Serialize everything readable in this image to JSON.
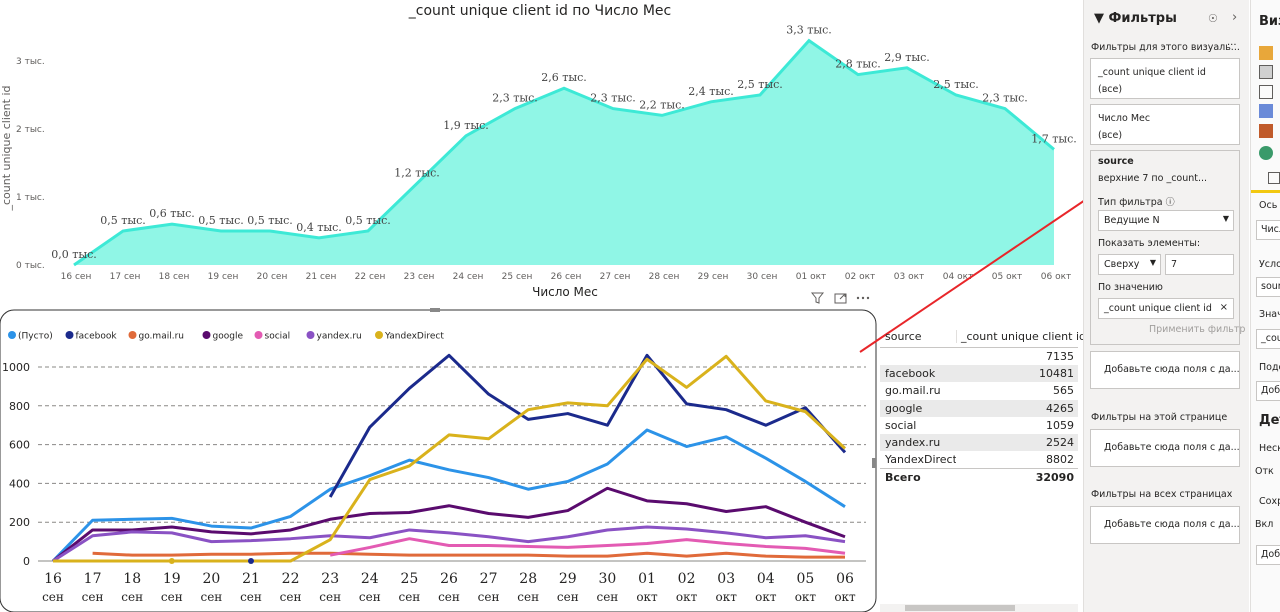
{
  "top_chart": {
    "title": "_count unique client id по Число Мес",
    "ylabel": "_count unique client id",
    "xlabel": "Число Мес",
    "y_ticks": [
      "0 тыс.",
      "1 тыс.",
      "2 тыс.",
      "3 тыс."
    ],
    "color": "#3de9d6"
  },
  "bottom_chart": {
    "legend": [
      {
        "name": "(Пусто)",
        "color": "#2c93e8"
      },
      {
        "name": "facebook",
        "color": "#1b2a8c"
      },
      {
        "name": "go.mail.ru",
        "color": "#e06a3a"
      },
      {
        "name": "google",
        "color": "#5a0b6e"
      },
      {
        "name": "social",
        "color": "#e35bb3"
      },
      {
        "name": "yandex.ru",
        "color": "#8a52c4"
      },
      {
        "name": "YandexDirect",
        "color": "#d9b21c"
      }
    ],
    "y_ticks": [
      "0",
      "200",
      "400",
      "600",
      "800",
      "1000"
    ],
    "x_day": [
      "16",
      "17",
      "18",
      "19",
      "20",
      "21",
      "22",
      "23",
      "24",
      "25",
      "26",
      "27",
      "28",
      "29",
      "30",
      "01",
      "02",
      "03",
      "04",
      "05",
      "06"
    ],
    "x_month": [
      "сен",
      "сен",
      "сен",
      "сен",
      "сен",
      "сен",
      "сен",
      "сен",
      "сен",
      "сен",
      "сен",
      "сен",
      "сен",
      "сен",
      "сен",
      "окт",
      "окт",
      "окт",
      "окт",
      "окт",
      "окт"
    ]
  },
  "chart_data": [
    {
      "type": "area",
      "title": "_count unique client id по Число Мес",
      "xlabel": "Число Мес",
      "ylabel": "_count unique client id",
      "categories": [
        "16 сен",
        "17 сен",
        "18 сен",
        "19 сен",
        "20 сен",
        "21 сен",
        "22 сен",
        "23 сен",
        "24 сен",
        "25 сен",
        "26 сен",
        "27 сен",
        "28 сен",
        "29 сен",
        "30 сен",
        "01 окт",
        "02 окт",
        "03 окт",
        "04 окт",
        "05 окт",
        "06 окт"
      ],
      "values": [
        0.0,
        0.5,
        0.6,
        0.5,
        0.5,
        0.4,
        0.5,
        1.2,
        1.9,
        2.3,
        2.6,
        2.3,
        2.2,
        2.4,
        2.5,
        3.3,
        2.8,
        2.9,
        2.5,
        2.3,
        1.7
      ],
      "data_labels": [
        "0,0 тыс.",
        "0,5 тыс.",
        "0,6 тыс.",
        "0,5 тыс.",
        "0,5 тыс.",
        "0,4 тыс.",
        "0,5 тыс.",
        "1,2 тыс.",
        "1,9 тыс.",
        "2,3 тыс.",
        "2,6 тыс.",
        "2,3 тыс.",
        "2,2 тыс.",
        "2,4 тыс.",
        "2,5 тыс.",
        "3,3 тыс.",
        "2,8 тыс.",
        "2,9 тыс.",
        "2,5 тыс.",
        "2,3 тыс.",
        "1,7 тыс."
      ],
      "ylim": [
        0,
        3.3
      ],
      "grid": false
    },
    {
      "type": "line",
      "categories": [
        "16 сен",
        "17 сен",
        "18 сен",
        "19 сен",
        "20 сен",
        "21 сен",
        "22 сен",
        "23 сен",
        "24 сен",
        "25 сен",
        "26 сен",
        "27 сен",
        "28 сен",
        "29 сен",
        "30 сен",
        "01 окт",
        "02 окт",
        "03 окт",
        "04 окт",
        "05 окт",
        "06 окт"
      ],
      "ylim": [
        0,
        1100
      ],
      "grid": true,
      "legend_position": "top-left",
      "series": [
        {
          "name": "(Пусто)",
          "color": "#2c93e8",
          "values": [
            0,
            210,
            215,
            220,
            180,
            170,
            230,
            370,
            440,
            520,
            470,
            430,
            370,
            410,
            500,
            675,
            590,
            640,
            530,
            410,
            280
          ]
        },
        {
          "name": "facebook",
          "color": "#1b2a8c",
          "values": [
            null,
            null,
            null,
            null,
            null,
            0,
            null,
            330,
            690,
            890,
            1060,
            860,
            730,
            760,
            700,
            1060,
            810,
            780,
            700,
            790,
            560
          ]
        },
        {
          "name": "go.mail.ru",
          "color": "#e06a3a",
          "values": [
            null,
            40,
            30,
            30,
            35,
            35,
            40,
            40,
            35,
            30,
            30,
            30,
            30,
            25,
            25,
            40,
            25,
            40,
            25,
            20,
            20
          ]
        },
        {
          "name": "google",
          "color": "#5a0b6e",
          "values": [
            0,
            160,
            160,
            175,
            150,
            140,
            160,
            215,
            245,
            250,
            285,
            245,
            225,
            260,
            375,
            310,
            295,
            255,
            280,
            200,
            125
          ]
        },
        {
          "name": "social",
          "color": "#e35bb3",
          "values": [
            null,
            null,
            null,
            null,
            null,
            null,
            null,
            30,
            70,
            115,
            80,
            80,
            75,
            70,
            80,
            90,
            110,
            90,
            75,
            65,
            40
          ]
        },
        {
          "name": "yandex.ru",
          "color": "#8a52c4",
          "values": [
            0,
            130,
            150,
            145,
            100,
            105,
            115,
            130,
            120,
            160,
            145,
            125,
            100,
            125,
            160,
            175,
            165,
            145,
            120,
            130,
            100
          ]
        },
        {
          "name": "YandexDirect",
          "color": "#d9b21c",
          "values": [
            0,
            0,
            0,
            0,
            0,
            0,
            0,
            110,
            420,
            490,
            650,
            630,
            780,
            815,
            800,
            1040,
            895,
            1055,
            825,
            770,
            580
          ]
        }
      ]
    },
    {
      "type": "table",
      "columns": [
        "source",
        "_count unique client id"
      ],
      "rows": [
        [
          "",
          "7135"
        ],
        [
          "facebook",
          "10481"
        ],
        [
          "go.mail.ru",
          "565"
        ],
        [
          "google",
          "4265"
        ],
        [
          "social",
          "1059"
        ],
        [
          "yandex.ru",
          "2524"
        ],
        [
          "YandexDirect",
          "8802"
        ]
      ],
      "total": [
        "Всего",
        "32090"
      ]
    }
  ],
  "table": {
    "col1": "source",
    "col2": "_count unique client id",
    "rows": [
      {
        "source": "",
        "value": "7135"
      },
      {
        "source": "facebook",
        "value": "10481"
      },
      {
        "source": "go.mail.ru",
        "value": "565"
      },
      {
        "source": "google",
        "value": "4265"
      },
      {
        "source": "social",
        "value": "1059"
      },
      {
        "source": "yandex.ru",
        "value": "2524"
      },
      {
        "source": "YandexDirect",
        "value": "8802"
      }
    ],
    "total_label": "Всего",
    "total_value": "32090"
  },
  "filters": {
    "title": "Фильтры",
    "section_visual": "Фильтры для этого визуаль...",
    "card1_name": "_count unique client id",
    "card1_value": "(все)",
    "card2_name": "Число Мес",
    "card2_value": "(все)",
    "card3_name": "source",
    "card3_value": "верхние 7 по _count...",
    "filter_type_label": "Тип фильтра",
    "filter_type_value": "Ведущие N",
    "show_items_label": "Показать элементы:",
    "show_items_dir": "Сверху",
    "show_items_count": "7",
    "by_value_label": "По значению",
    "by_value_field": "_count unique client id",
    "apply_button": "Применить фильтр",
    "add_fields_1": "Добавьте сюда поля с да...",
    "section_page": "Фильтры на этой странице",
    "add_fields_2": "Добавьте сюда поля с да...",
    "section_all": "Фильтры на всех страницах",
    "add_fields_3": "Добавьте сюда поля с да..."
  },
  "viz": {
    "title": "Виз",
    "axis_label": "Ось",
    "axis_value": "Числ",
    "cond_label": "Усло",
    "cond_value": "sour",
    "values_label": "Значе",
    "values_value": "_cou",
    "tooltip_label": "Подс",
    "tooltip_value": "Доб",
    "detail_label": "Дет",
    "several_label": "Неско",
    "off_label": "Отк",
    "save_label": "Сохр",
    "on_label": "Вкл",
    "add_value": "Доб"
  },
  "arrow_color": "#e8262a"
}
